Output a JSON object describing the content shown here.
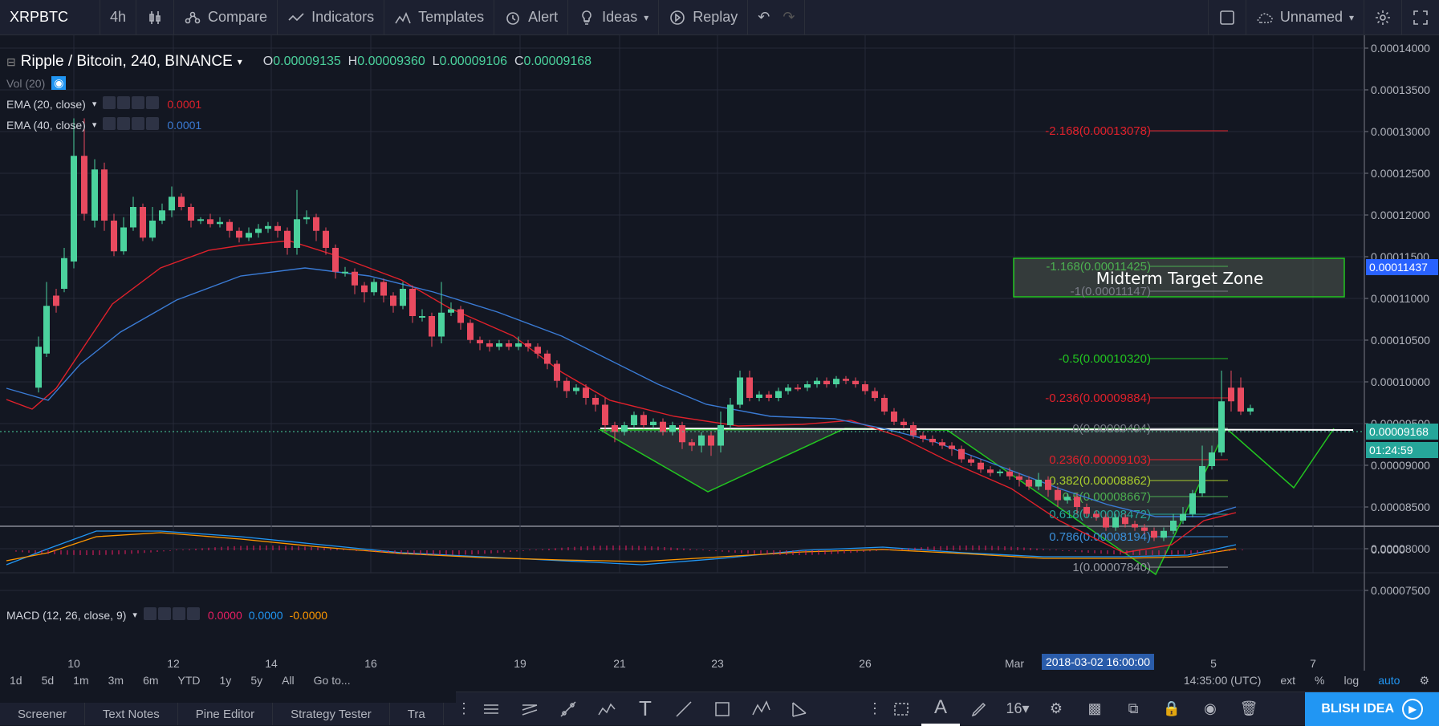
{
  "toolbar": {
    "symbol": "XRPBTC",
    "interval": "4h",
    "compare": "Compare",
    "indicators": "Indicators",
    "templates": "Templates",
    "alert": "Alert",
    "ideas": "Ideas",
    "replay": "Replay",
    "layout_name": "Unnamed"
  },
  "legend": {
    "title": "Ripple / Bitcoin, 240, BINANCE",
    "o_label": "O",
    "o": "0.00009135",
    "h_label": "H",
    "h": "0.00009360",
    "l_label": "L",
    "l": "0.00009106",
    "c_label": "C",
    "c": "0.00009168",
    "vol": "Vol (20)",
    "ema20": "EMA (20, close)",
    "ema20_val": "0.0001",
    "ema40": "EMA (40, close)",
    "ema40_val": "0.0001",
    "macd": "MACD (12, 26, close, 9)",
    "macd_v1": "0.0000",
    "macd_v2": "0.0000",
    "macd_v3": "-0.0000"
  },
  "price_axis": [
    "0.00014000",
    "0.00013500",
    "0.00013000",
    "0.00012500",
    "0.00012000",
    "0.00011500",
    "0.00011000",
    "0.00010500",
    "0.00010000",
    "0.00009500",
    "0.00009000",
    "0.00008500",
    "0.00008000",
    "0.00007500"
  ],
  "price_tags": {
    "target": "0.00011437",
    "last": "0.00009168",
    "countdown": "01:24:59",
    "macd_zero": "0.0000"
  },
  "time_axis": [
    "10",
    "12",
    "14",
    "16",
    "19",
    "21",
    "23",
    "26",
    "Mar",
    "5",
    "7"
  ],
  "crosshair_time": "2018-03-02 16:00:00",
  "fib_levels": [
    {
      "label": "-2.168(0.00013078)",
      "color": "#e0212b"
    },
    {
      "label": "-1.168(0.00011425)",
      "color": "#4caf50"
    },
    {
      "label": "-1(0.00011147)",
      "color": "#787b86"
    },
    {
      "label": "-0.5(0.00010320)",
      "color": "#22c520"
    },
    {
      "label": "-0.236(0.00009884)",
      "color": "#e0212b"
    },
    {
      "label": "0(0.00009494)",
      "color": "#787b86"
    },
    {
      "label": "0.236(0.00009103)",
      "color": "#e0212b"
    },
    {
      "label": "0.382(0.00008862)",
      "color": "#a8cc2c"
    },
    {
      "label": "0.5(0.00008667)",
      "color": "#4caf50"
    },
    {
      "label": "0.618(0.00008472)",
      "color": "#26a69a"
    },
    {
      "label": "0.786(0.00008194)",
      "color": "#3a8fd9"
    },
    {
      "label": "1(0.00007840)",
      "color": "#9598a1"
    }
  ],
  "target_zone": "Midterm Target Zone",
  "bottom": {
    "ranges": [
      "1d",
      "5d",
      "1m",
      "3m",
      "6m",
      "YTD",
      "1y",
      "5y",
      "All",
      "Go to..."
    ],
    "clock": "14:35:00 (UTC)",
    "opts": [
      "ext",
      "%",
      "log",
      "auto"
    ]
  },
  "tabs": [
    "Screener",
    "Text Notes",
    "Pine Editor",
    "Strategy Tester",
    "Tra"
  ],
  "drawbar": {
    "font_size": "16",
    "publish": "BLISH IDEA"
  },
  "colors": {
    "up": "#4bd29d",
    "down": "#e84a5f",
    "ema20": "#e0212b",
    "ema40": "#3a7bd5",
    "accent": "#2196f3"
  }
}
